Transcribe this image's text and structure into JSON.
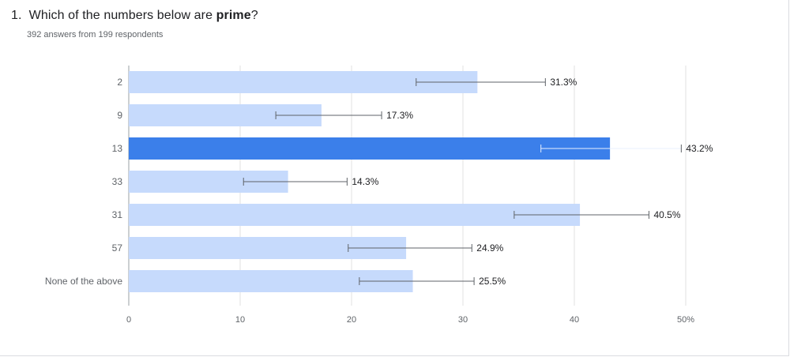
{
  "question": {
    "number": "1.",
    "text_before": "Which of the numbers below are ",
    "text_bold": "prime",
    "text_after": "?",
    "subtitle": "392 answers from 199 respondents"
  },
  "colors": {
    "bar": "#c6dafc",
    "bar_highlight": "#3b7fea",
    "grid": "#e0e0e0",
    "error": "#5f6368"
  },
  "chart_data": {
    "type": "bar",
    "orientation": "horizontal",
    "categories": [
      "2",
      "9",
      "13",
      "33",
      "31",
      "57",
      "None of the above"
    ],
    "values": [
      31.3,
      17.3,
      43.2,
      14.3,
      40.5,
      24.9,
      25.5
    ],
    "value_labels": [
      "31.3%",
      "17.3%",
      "43.2%",
      "14.3%",
      "40.5%",
      "24.9%",
      "25.5%"
    ],
    "error_low": [
      25.8,
      13.2,
      37.0,
      10.3,
      34.6,
      19.7,
      20.7
    ],
    "error_high": [
      37.4,
      22.7,
      49.6,
      19.6,
      46.7,
      30.8,
      31.0
    ],
    "highlight_index": 2,
    "xlim": [
      0,
      50
    ],
    "xticks": [
      0,
      10,
      20,
      30,
      40,
      50
    ],
    "xtick_labels": [
      "0",
      "10",
      "20",
      "30",
      "40",
      "50%"
    ],
    "grid": true
  }
}
